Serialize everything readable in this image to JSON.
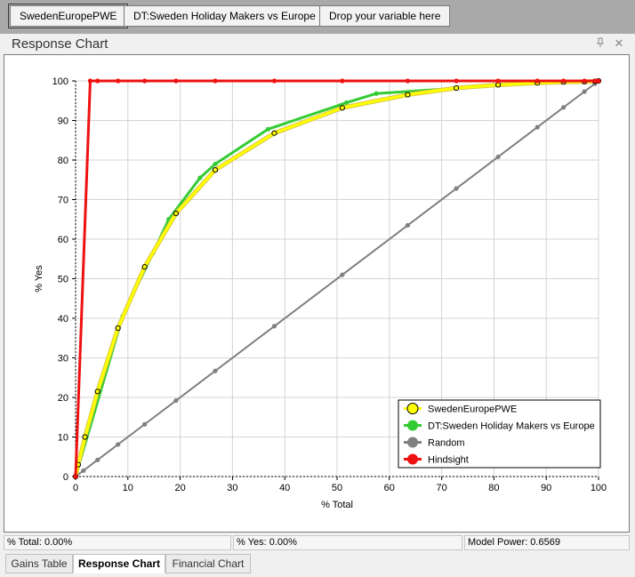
{
  "toolbar": {
    "buttons": [
      "SwedenEuropePWE",
      "DT:Sweden Holiday Makers vs Europe",
      "Drop your variable here"
    ]
  },
  "panel": {
    "title": "Response Chart",
    "pin_icon": "pin-icon",
    "close_icon": "close-icon"
  },
  "status": {
    "total": "% Total: 0.00%",
    "yes": "% Yes: 0.00%",
    "power": "Model Power: 0.6569"
  },
  "tabs": {
    "items": [
      "Gains Table",
      "Response Chart",
      "Financial Chart"
    ],
    "active": "Response Chart"
  },
  "chart_data": {
    "type": "line",
    "xlabel": "% Total",
    "ylabel": "% Yes",
    "xlim": [
      0,
      100
    ],
    "ylim": [
      0,
      100
    ],
    "xticks": [
      0,
      10,
      20,
      30,
      40,
      50,
      60,
      70,
      80,
      90,
      100
    ],
    "yticks": [
      0,
      10,
      20,
      30,
      40,
      50,
      60,
      70,
      80,
      90,
      100
    ],
    "grid": true,
    "legend_position": "bottom-right",
    "series": [
      {
        "name": "SwedenEuropePWE",
        "color": "#ffff00",
        "marker": "hollow-circle",
        "x": [
          0,
          0.5,
          1.8,
          4.2,
          8.1,
          13.2,
          19.2,
          26.7,
          38.0,
          51.0,
          63.5,
          72.8,
          80.8,
          88.3,
          93.3,
          97.3,
          99.3,
          100
        ],
        "y": [
          0,
          3,
          10,
          21.5,
          37.5,
          53,
          66.5,
          77.5,
          86.8,
          93.2,
          96.5,
          98.2,
          99.0,
          99.5,
          99.7,
          99.8,
          99.9,
          100
        ]
      },
      {
        "name": "DT:Sweden Holiday Makers vs Europe",
        "color": "#33cc33",
        "marker": "filled-circle",
        "x": [
          0,
          9.0,
          14.8,
          17.8,
          23.8,
          26.7,
          36.8,
          51.8,
          57.5,
          88.0,
          100
        ],
        "y": [
          0,
          40.5,
          56.5,
          65,
          75.5,
          79,
          87.8,
          94.5,
          96.8,
          99.5,
          100
        ]
      },
      {
        "name": "Random",
        "color": "#808080",
        "marker": "filled-circle",
        "x": [
          0,
          1.5,
          4.2,
          8.1,
          13.2,
          19.2,
          26.7,
          38.0,
          51.0,
          63.5,
          72.8,
          80.8,
          88.3,
          93.3,
          97.3,
          99.3,
          100
        ],
        "y": [
          0,
          1.5,
          4.2,
          8.1,
          13.2,
          19.2,
          26.7,
          38.0,
          51.0,
          63.5,
          72.8,
          80.8,
          88.3,
          93.3,
          97.3,
          99.3,
          100
        ]
      },
      {
        "name": "Hindsight",
        "color": "#ee1111",
        "marker": "filled-circle",
        "x": [
          0,
          2.8,
          4.2,
          8.1,
          13.2,
          19.2,
          26.7,
          38.0,
          51.0,
          63.5,
          72.8,
          80.8,
          88.3,
          93.3,
          97.3,
          99.3,
          100
        ],
        "y": [
          0,
          100,
          100,
          100,
          100,
          100,
          100,
          100,
          100,
          100,
          100,
          100,
          100,
          100,
          100,
          100,
          100
        ]
      }
    ]
  }
}
